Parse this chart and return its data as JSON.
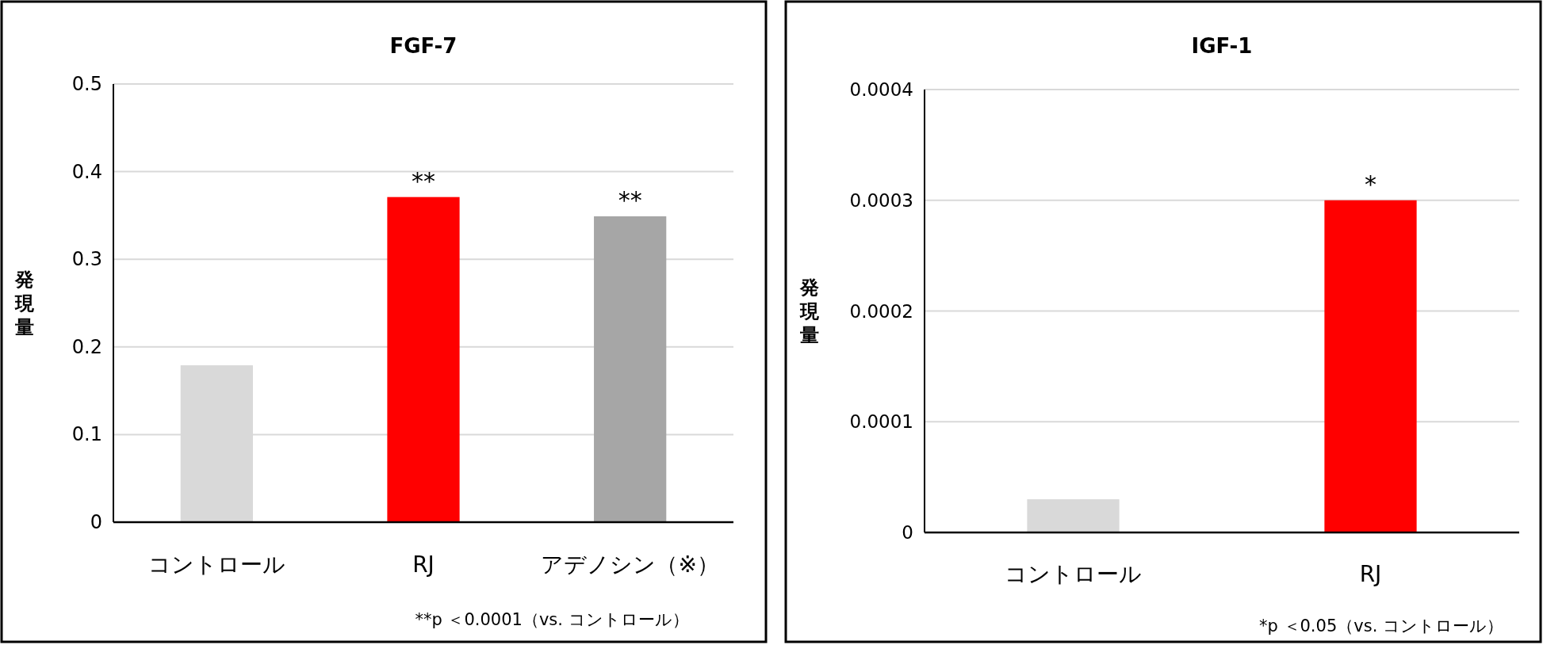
{
  "chart_data": [
    {
      "type": "bar",
      "title": "FGF-7",
      "ylabel": "発現量",
      "categories": [
        "コントロール",
        "RJ",
        "アデノシン（※）"
      ],
      "values": [
        0.179,
        0.371,
        0.349
      ],
      "colors": [
        "#d9d9d9",
        "#ff0000",
        "#a6a6a6"
      ],
      "ylim": [
        0,
        0.5
      ],
      "yticks": [
        0,
        0.1,
        0.2,
        0.3,
        0.4,
        0.5
      ],
      "grid": "y",
      "annotations": [
        {
          "text": "**",
          "x": "RJ",
          "y": 0.371
        },
        {
          "text": "**",
          "x": "アデノシン（※）",
          "y": 0.349
        },
        "**p ＜0.0001（vs. コントロール）"
      ]
    },
    {
      "type": "bar",
      "title": "IGF-1",
      "ylabel": "発現量",
      "categories": [
        "コントロール",
        "RJ"
      ],
      "values": [
        3e-05,
        0.0003
      ],
      "colors": [
        "#d9d9d9",
        "#ff0000"
      ],
      "ylim": [
        0,
        0.0004
      ],
      "yticks": [
        0,
        0.0001,
        0.0002,
        0.0003,
        0.0004
      ],
      "grid": "y",
      "annotations": [
        {
          "text": "*",
          "x": "RJ",
          "y": 0.0003
        },
        "*p ＜0.05（vs. コントロール）"
      ]
    }
  ]
}
